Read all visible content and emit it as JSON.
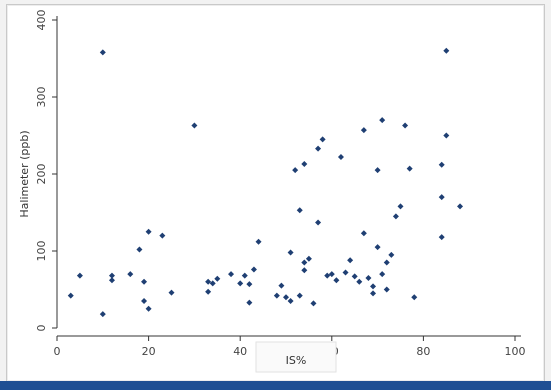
{
  "chart_data": {
    "type": "scatter",
    "xlabel": "IS%",
    "ylabel": "Halimeter (ppb)",
    "xlim": [
      0,
      100
    ],
    "ylim": [
      0,
      400
    ],
    "x_ticks": [
      0,
      20,
      40,
      60,
      80,
      100
    ],
    "y_ticks": [
      0,
      100,
      200,
      300,
      400
    ],
    "grid": false,
    "marker_color": "#1f3f73",
    "points": [
      {
        "x": 3,
        "y": 42
      },
      {
        "x": 5,
        "y": 68
      },
      {
        "x": 10,
        "y": 358
      },
      {
        "x": 10,
        "y": 18
      },
      {
        "x": 12,
        "y": 68
      },
      {
        "x": 12,
        "y": 62
      },
      {
        "x": 16,
        "y": 70
      },
      {
        "x": 18,
        "y": 102
      },
      {
        "x": 19,
        "y": 60
      },
      {
        "x": 19,
        "y": 35
      },
      {
        "x": 20,
        "y": 125
      },
      {
        "x": 20,
        "y": 25
      },
      {
        "x": 23,
        "y": 120
      },
      {
        "x": 25,
        "y": 46
      },
      {
        "x": 30,
        "y": 263
      },
      {
        "x": 33,
        "y": 60
      },
      {
        "x": 33,
        "y": 47
      },
      {
        "x": 34,
        "y": 58
      },
      {
        "x": 35,
        "y": 64
      },
      {
        "x": 38,
        "y": 70
      },
      {
        "x": 40,
        "y": 58
      },
      {
        "x": 41,
        "y": 68
      },
      {
        "x": 42,
        "y": 33
      },
      {
        "x": 42,
        "y": 57
      },
      {
        "x": 43,
        "y": 76
      },
      {
        "x": 44,
        "y": 112
      },
      {
        "x": 48,
        "y": 42
      },
      {
        "x": 49,
        "y": 55
      },
      {
        "x": 50,
        "y": 40
      },
      {
        "x": 51,
        "y": 98
      },
      {
        "x": 51,
        "y": 35
      },
      {
        "x": 52,
        "y": 205
      },
      {
        "x": 53,
        "y": 153
      },
      {
        "x": 53,
        "y": 42
      },
      {
        "x": 54,
        "y": 213
      },
      {
        "x": 54,
        "y": 85
      },
      {
        "x": 54,
        "y": 75
      },
      {
        "x": 55,
        "y": 90
      },
      {
        "x": 56,
        "y": 32
      },
      {
        "x": 57,
        "y": 137
      },
      {
        "x": 57,
        "y": 233
      },
      {
        "x": 58,
        "y": 245
      },
      {
        "x": 59,
        "y": 68
      },
      {
        "x": 60,
        "y": 70
      },
      {
        "x": 61,
        "y": 62
      },
      {
        "x": 62,
        "y": 222
      },
      {
        "x": 63,
        "y": 72
      },
      {
        "x": 64,
        "y": 88
      },
      {
        "x": 65,
        "y": 67
      },
      {
        "x": 66,
        "y": 60
      },
      {
        "x": 67,
        "y": 257
      },
      {
        "x": 67,
        "y": 123
      },
      {
        "x": 68,
        "y": 65
      },
      {
        "x": 69,
        "y": 54
      },
      {
        "x": 69,
        "y": 45
      },
      {
        "x": 70,
        "y": 105
      },
      {
        "x": 70,
        "y": 205
      },
      {
        "x": 71,
        "y": 270
      },
      {
        "x": 71,
        "y": 70
      },
      {
        "x": 72,
        "y": 85
      },
      {
        "x": 72,
        "y": 50
      },
      {
        "x": 73,
        "y": 95
      },
      {
        "x": 74,
        "y": 145
      },
      {
        "x": 75,
        "y": 158
      },
      {
        "x": 76,
        "y": 263
      },
      {
        "x": 77,
        "y": 207
      },
      {
        "x": 78,
        "y": 40
      },
      {
        "x": 84,
        "y": 212
      },
      {
        "x": 84,
        "y": 118
      },
      {
        "x": 84,
        "y": 170
      },
      {
        "x": 85,
        "y": 360
      },
      {
        "x": 85,
        "y": 250
      },
      {
        "x": 88,
        "y": 158
      }
    ]
  }
}
